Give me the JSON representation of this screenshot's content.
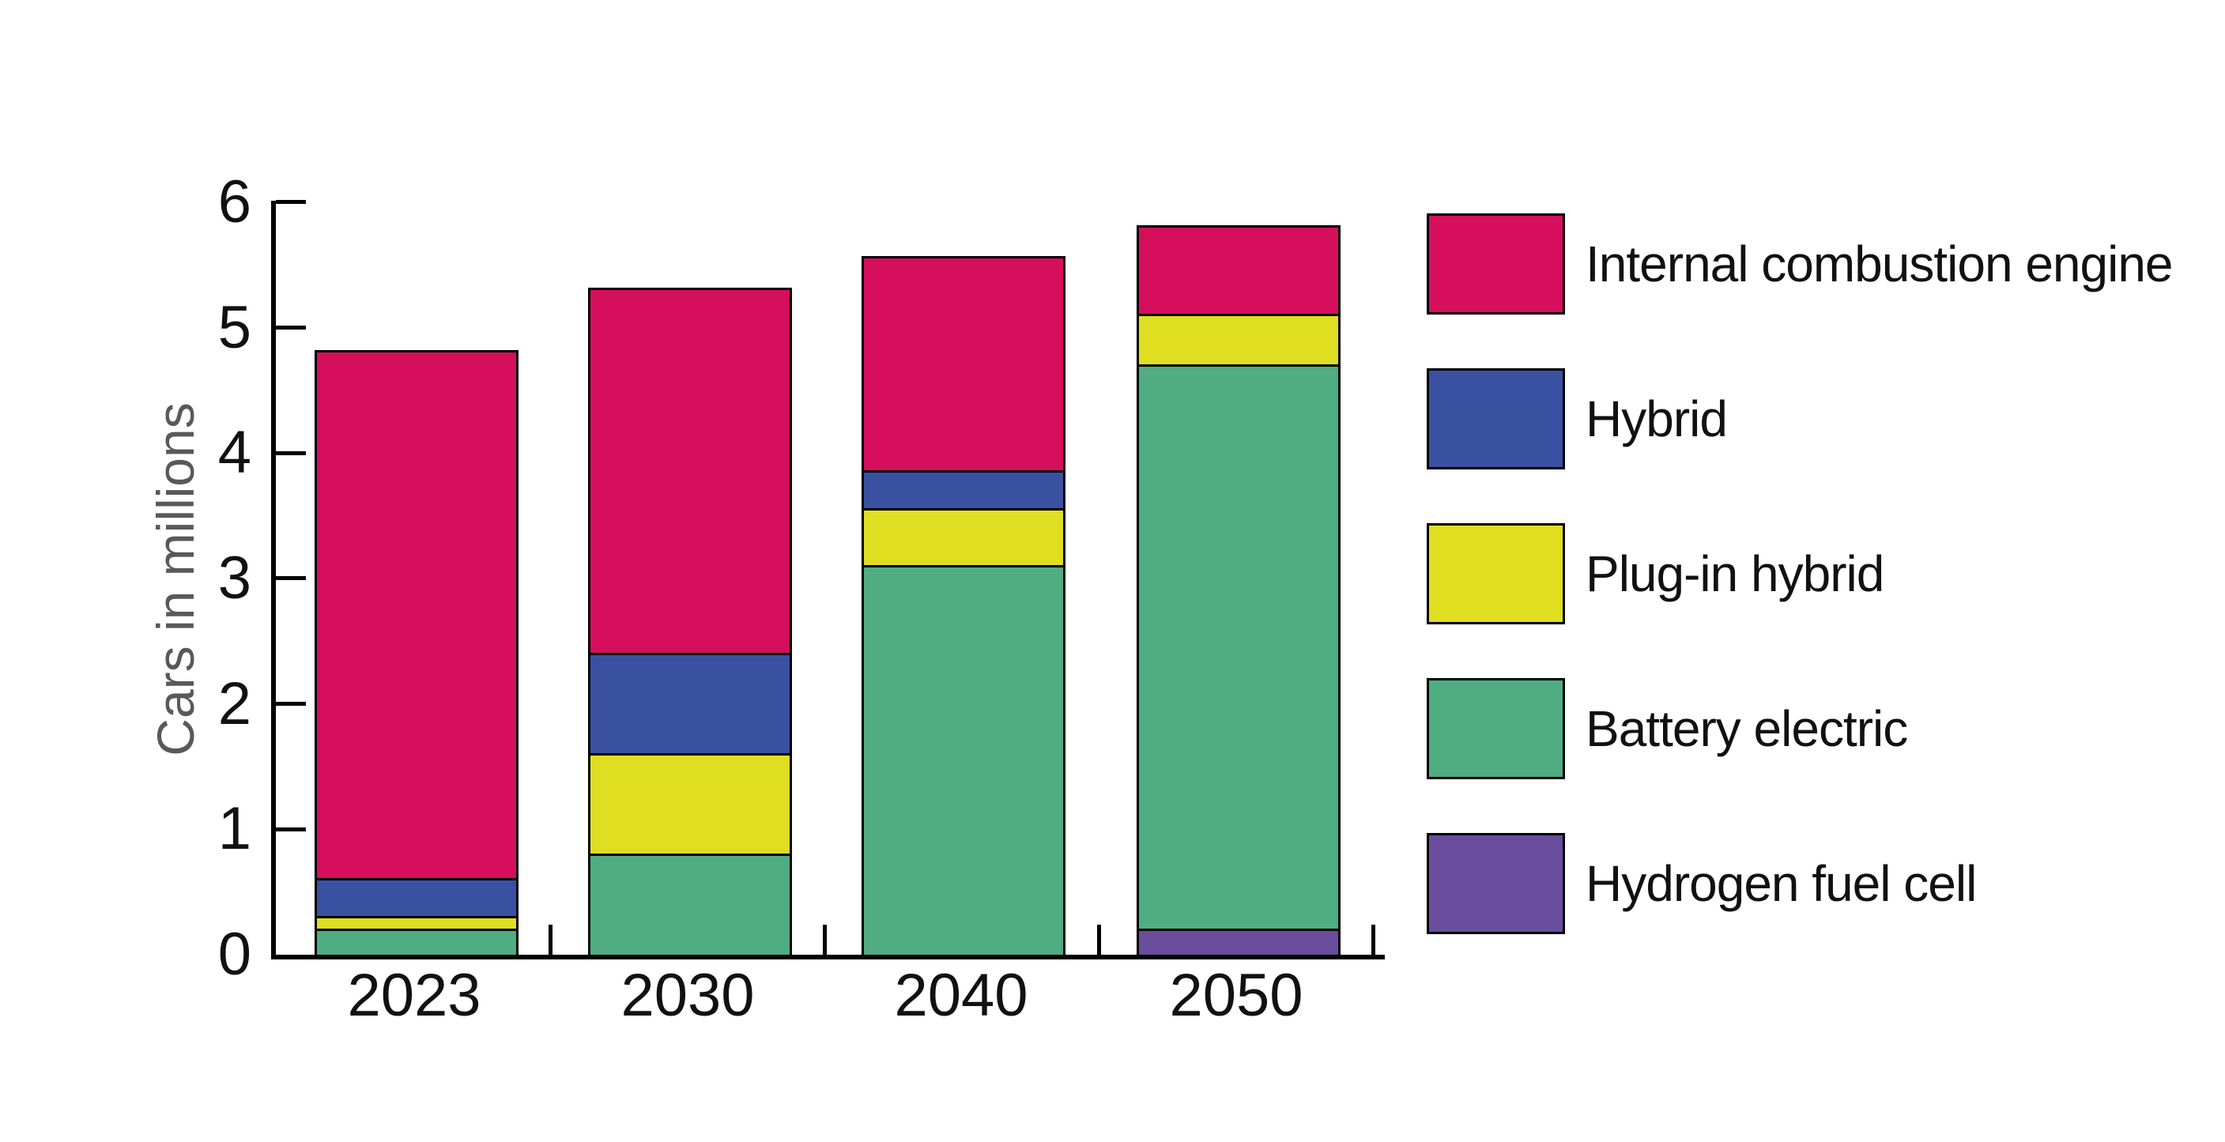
{
  "axes": {
    "y_label": "Cars in millions",
    "y_tick_labels": [
      "0",
      "1",
      "2",
      "3",
      "4",
      "5",
      "6"
    ],
    "x_tick_labels": [
      "2023",
      "2030",
      "2040",
      "2050"
    ]
  },
  "legend": {
    "items": [
      {
        "label": "Internal combustion engine",
        "color": "#D50F5C"
      },
      {
        "label": "Hybrid",
        "color": "#3A51A2"
      },
      {
        "label": "Plug-in hybrid",
        "color": "#E0DE20"
      },
      {
        "label": "Battery electric",
        "color": "#4FAD81"
      },
      {
        "label": "Hydrogen fuel cell",
        "color": "#6A4D9C"
      }
    ]
  },
  "colors": {
    "axis": "#000000",
    "tick_label": "#111111",
    "y_axis_title": "#595959",
    "bar_outline": "#000000",
    "background": "#ffffff"
  },
  "chart_data": {
    "type": "bar",
    "stacked": true,
    "title": "",
    "xlabel": "",
    "ylabel": "Cars in millions",
    "categories": [
      "2023",
      "2030",
      "2040",
      "2050"
    ],
    "series": [
      {
        "name": "Internal combustion engine",
        "color": "#D50F5C",
        "values": [
          4.2,
          2.9,
          1.7,
          0.7
        ]
      },
      {
        "name": "Hybrid",
        "color": "#3A51A2",
        "values": [
          0.3,
          0.8,
          0.3,
          0
        ]
      },
      {
        "name": "Plug-in hybrid",
        "color": "#E0DE20",
        "values": [
          0.1,
          0.8,
          0.45,
          0.4
        ]
      },
      {
        "name": "Battery electric",
        "color": "#4FAD81",
        "values": [
          0.2,
          0.8,
          3.1,
          4.5
        ]
      },
      {
        "name": "Hydrogen fuel cell",
        "color": "#6A4D9C",
        "values": [
          0,
          0,
          0,
          0.2
        ]
      }
    ],
    "stack_order_bottom_to_top": [
      "Hydrogen fuel cell",
      "Battery electric",
      "Plug-in hybrid",
      "Hybrid",
      "Internal combustion engine"
    ],
    "totals": [
      4.8,
      5.3,
      5.55,
      5.8
    ],
    "ylim": [
      0,
      6
    ],
    "yticks": [
      0,
      1,
      2,
      3,
      4,
      5,
      6
    ],
    "grid": false,
    "legend_position": "right"
  }
}
